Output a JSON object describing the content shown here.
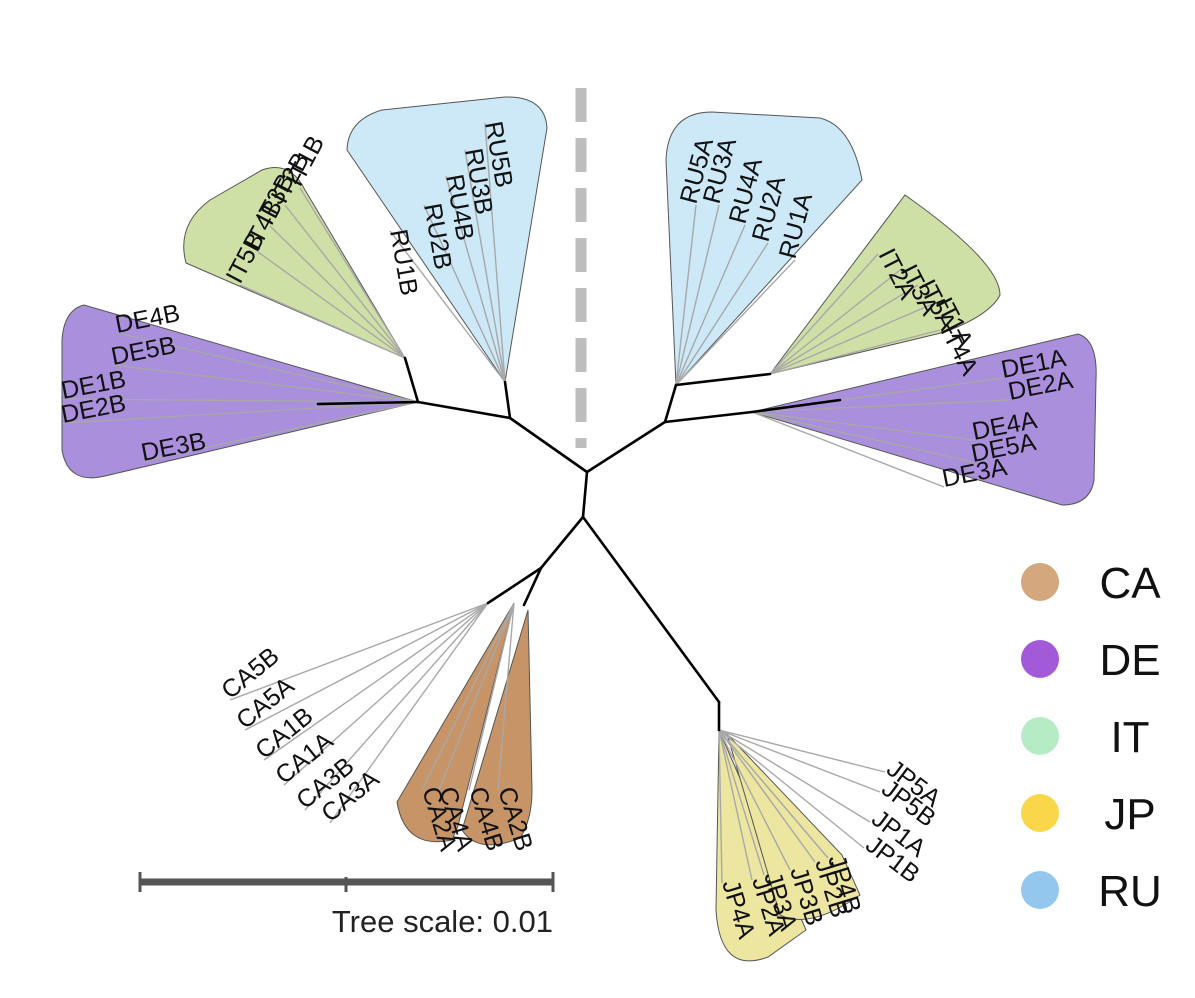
{
  "colors": {
    "CA": "#c79468",
    "DE": "#a98fdc",
    "IT": "#cfe0a7",
    "JP": "#ece6a0",
    "RU": "#cde9f8",
    "legend_CA": "#d4a77c",
    "legend_DE": "#a25ad8",
    "legend_IT": "#b5ecc6",
    "legend_JP": "#fad64a",
    "legend_RU": "#94c7ee",
    "scale_bar": "#555555",
    "divider": "#bdbdbd"
  },
  "clades": {
    "RU_B": [
      "RU5B",
      "RU3B",
      "RU4B",
      "RU2B",
      "RU1B"
    ],
    "IT_B": [
      "IT1B",
      "IT2B",
      "IT3B",
      "IT4B",
      "IT5B"
    ],
    "DE_B": [
      "DE4B",
      "DE5B",
      "DE1B",
      "DE2B",
      "DE3B"
    ],
    "RU_A": [
      "RU5A",
      "RU3A",
      "RU4A",
      "RU2A",
      "RU1A"
    ],
    "IT_A": [
      "IT2A",
      "IT3A",
      "IT5A",
      "IT1A",
      "IT4A"
    ],
    "DE_A": [
      "DE1A",
      "DE2A",
      "DE4A",
      "DE5A",
      "DE3A"
    ],
    "CA_B_out": [
      "CA5B",
      "CA5A",
      "CA1B",
      "CA1A",
      "CA3B",
      "CA3A"
    ],
    "CA_in": [
      "CA2A",
      "CA4A",
      "CA4B",
      "CA2B"
    ],
    "JP_out": [
      "JP5A",
      "JP5B",
      "JP1A",
      "JP1B"
    ],
    "JP_in": [
      "JP4A",
      "JP2A",
      "JP3A",
      "JP3B",
      "JP2B",
      "JP4B"
    ]
  },
  "legend": [
    {
      "label": "CA",
      "color_key": "legend_CA"
    },
    {
      "label": "DE",
      "color_key": "legend_DE"
    },
    {
      "label": "IT",
      "color_key": "legend_IT"
    },
    {
      "label": "JP",
      "color_key": "legend_JP"
    },
    {
      "label": "RU",
      "color_key": "legend_RU"
    }
  ],
  "scale": {
    "label": "Tree scale: 0.01"
  }
}
